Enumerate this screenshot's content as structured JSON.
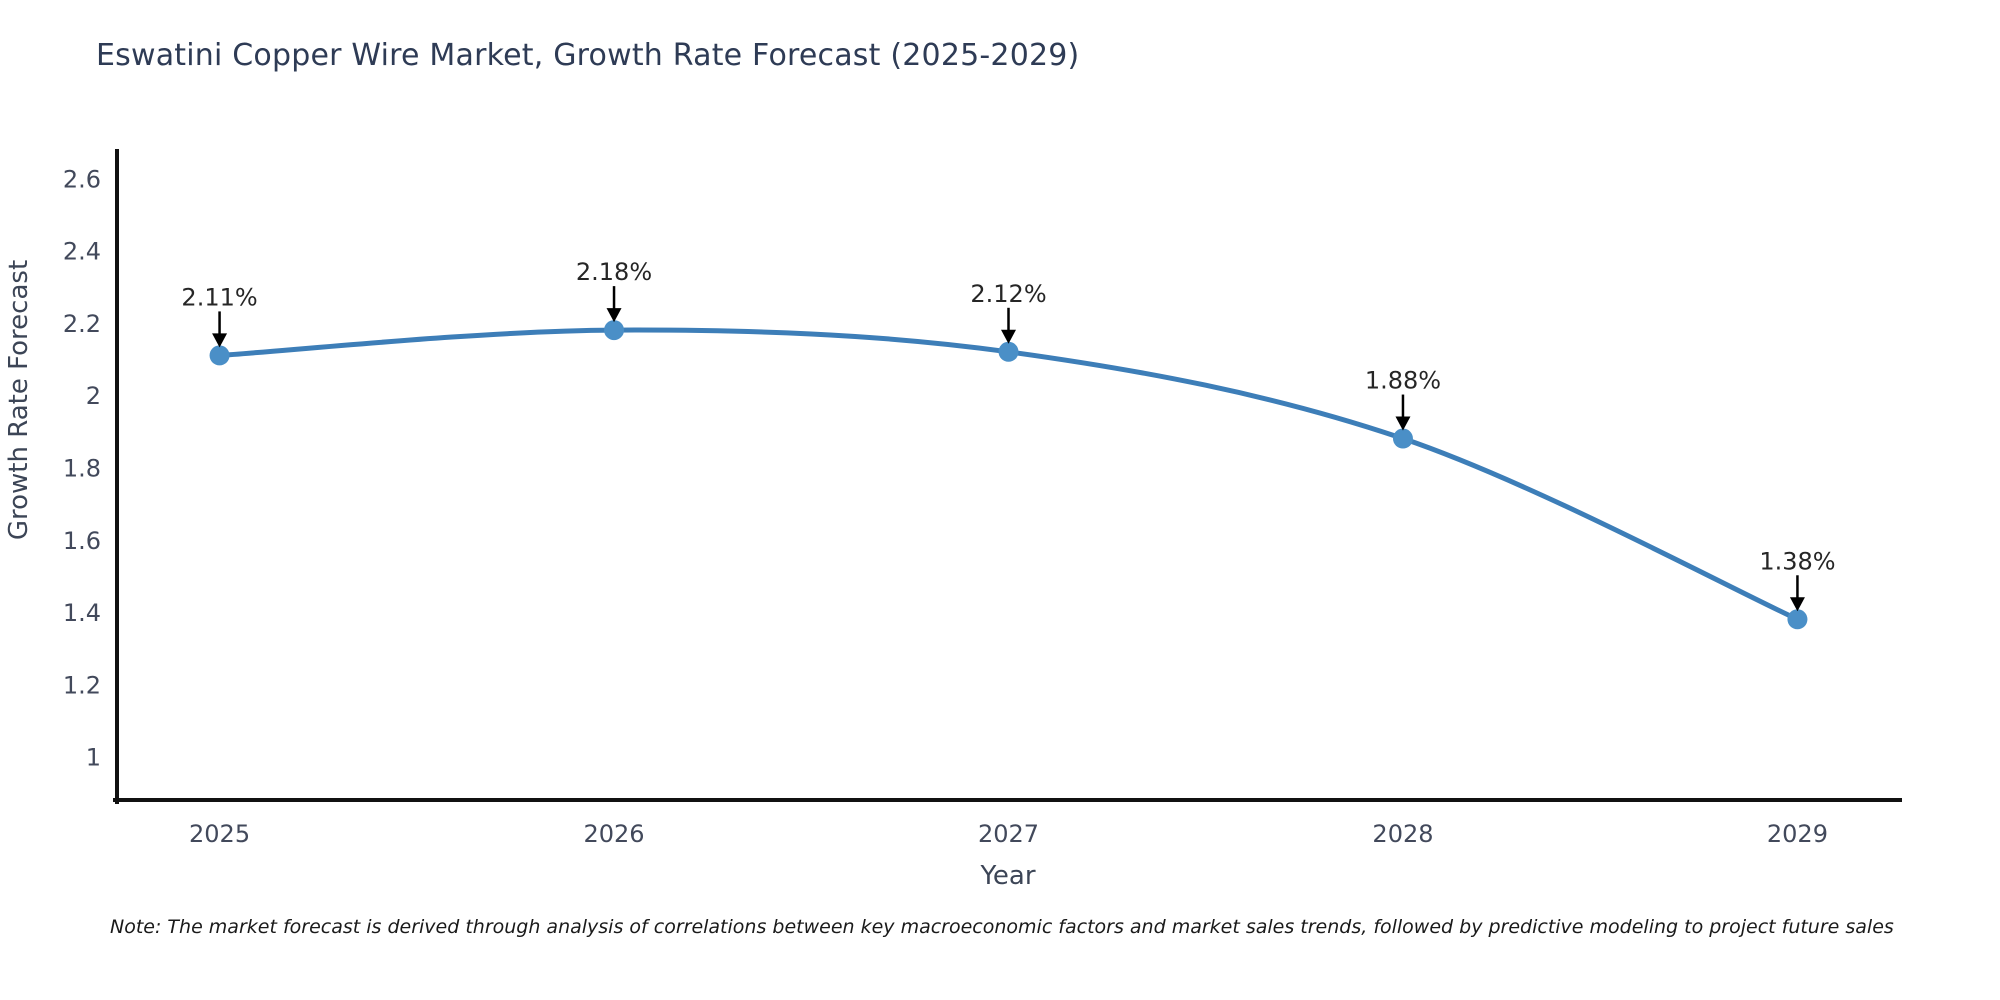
{
  "note": "Note: The market forecast is derived through analysis of correlations between key macroeconomic factors and market sales trends, followed by predictive modeling to project future sales",
  "chart_data": {
    "type": "line",
    "title": "Eswatini Copper Wire Market, Growth Rate Forecast (2025-2029)",
    "xlabel": "Year",
    "ylabel": "Growth Rate Forecast",
    "x": [
      2025,
      2026,
      2027,
      2028,
      2029
    ],
    "series": [
      {
        "name": "Growth Rate Forecast",
        "values": [
          2.11,
          2.18,
          2.12,
          1.88,
          1.38
        ]
      }
    ],
    "point_labels": [
      "2.11%",
      "2.18%",
      "2.12%",
      "1.88%",
      "1.38%"
    ],
    "xticks": [
      "2025",
      "2026",
      "2027",
      "2028",
      "2029"
    ],
    "yticks": [
      "1",
      "1.2",
      "1.4",
      "1.6",
      "1.8",
      "2",
      "2.2",
      "2.4",
      "2.6"
    ],
    "xlim": [
      2024.74,
      2029.26
    ],
    "ylim": [
      0.88,
      2.67
    ],
    "grid": false,
    "legend_position": "none",
    "colors": {
      "line": "#3d7eb8",
      "marker": "#4a8fc7",
      "annotation_arrow": "#000000",
      "axis": "#111111"
    }
  }
}
